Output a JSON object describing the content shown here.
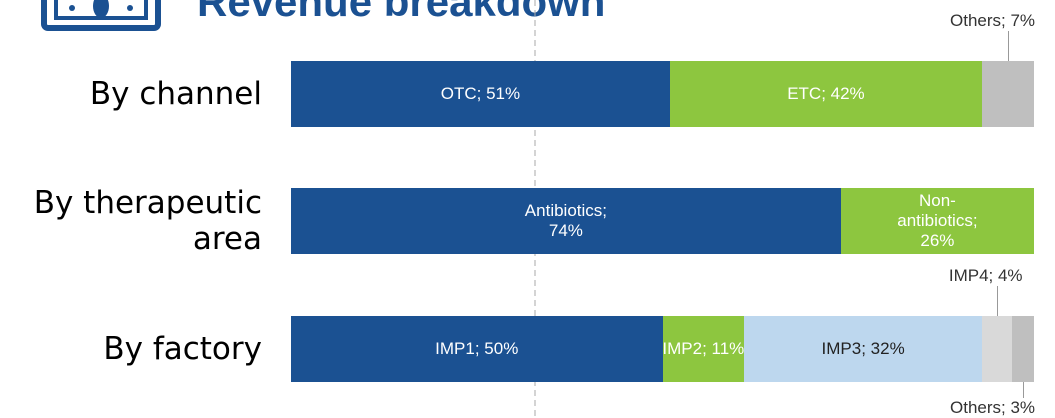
{
  "chart_data": {
    "type": "stacked-bar-horizontal",
    "title": "Revenue breakdown",
    "xlim": [
      0,
      100
    ],
    "bars": [
      {
        "category": "By channel",
        "segments": [
          {
            "value": 51,
            "label": "OTC; 51%",
            "color": "#1b5192"
          },
          {
            "value": 42,
            "label": "ETC; 42%",
            "color": "#8dc63f"
          },
          {
            "value": 7,
            "label": "Others; 7%",
            "color": "#bfbfbf"
          }
        ]
      },
      {
        "category": "By therapeutic area",
        "segments": [
          {
            "value": 74,
            "label": "Antibiotics; 74%",
            "color": "#1b5192"
          },
          {
            "value": 26,
            "label": "Non-antibiotics; 26%",
            "color": "#8dc63f"
          }
        ]
      },
      {
        "category": "By factory",
        "segments": [
          {
            "value": 50,
            "label": "IMP1; 50%",
            "color": "#1b5192"
          },
          {
            "value": 11,
            "label": "IMP2; 11%",
            "color": "#8dc63f"
          },
          {
            "value": 32,
            "label": "IMP3; 32%",
            "color": "#bdd7ee"
          },
          {
            "value": 4,
            "label": "IMP4; 4%",
            "color": "#d9d9d9"
          },
          {
            "value": 3,
            "label": "Others; 3%",
            "color": "#bfbfbf"
          }
        ]
      }
    ]
  }
}
